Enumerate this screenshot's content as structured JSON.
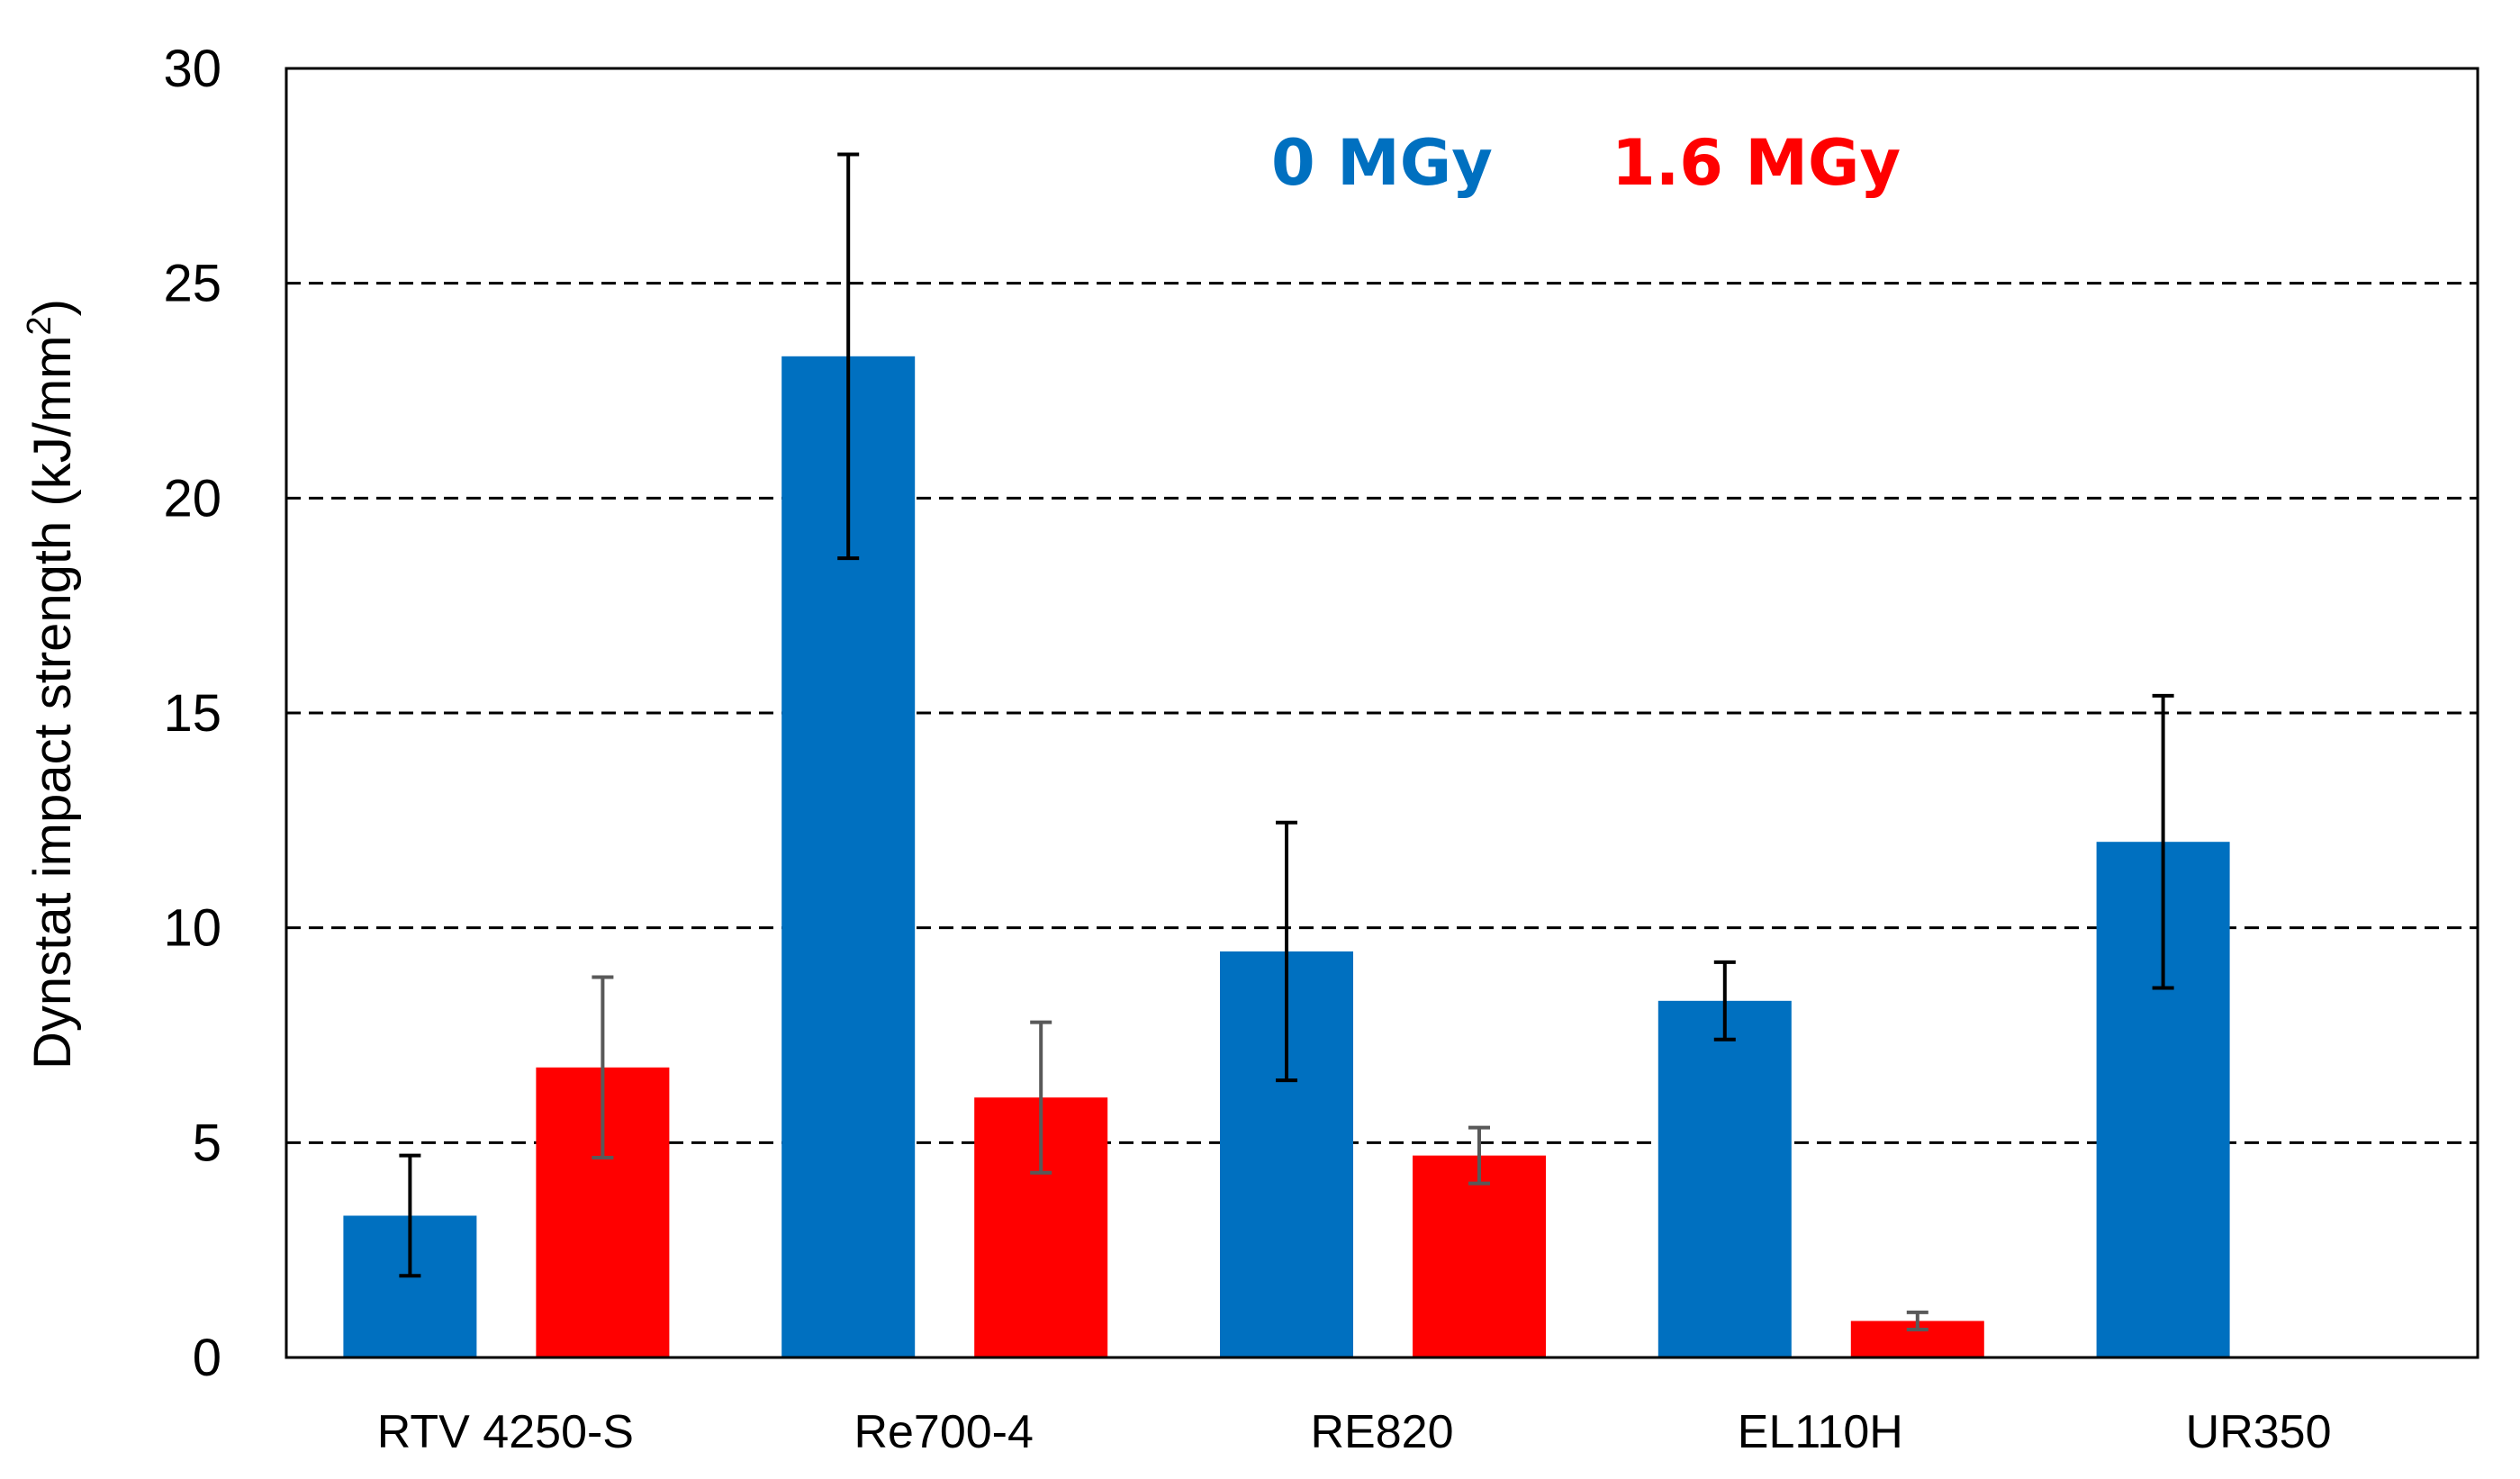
{
  "chart_data": {
    "type": "bar",
    "categories": [
      "RTV 4250-S",
      "Re700-4",
      "RE820",
      "EL110H",
      "UR350"
    ],
    "series": [
      {
        "name": "0 MGy",
        "color": "#0070C0",
        "values": [
          3.3,
          23.3,
          9.45,
          8.3,
          12.0
        ],
        "errors": [
          1.4,
          4.7,
          3.0,
          0.9,
          3.4
        ],
        "error_color": "#000000"
      },
      {
        "name": "1.6 MGy",
        "color": "#FF0000",
        "values": [
          6.75,
          6.05,
          4.7,
          0.85,
          null
        ],
        "errors": [
          2.1,
          1.75,
          0.65,
          0.2,
          null
        ],
        "error_color": "#595959"
      }
    ],
    "ylabel": "Dynstat impact strength (kJ/mm",
    "ylabel_superscript": "2",
    "ylabel_close": ")",
    "ylim": [
      0,
      30
    ],
    "yticks": [
      0,
      5,
      10,
      15,
      20,
      25,
      30
    ],
    "grid": "horizontal-dashed",
    "legend_position": "top-center"
  }
}
